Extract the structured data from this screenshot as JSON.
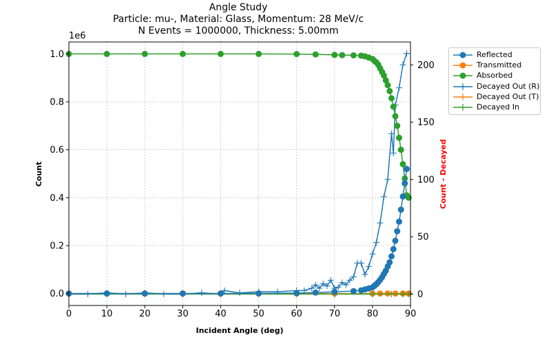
{
  "title": {
    "line1": "Angle Study",
    "line2": "Particle: mu-, Material: Glass, Momentum: 28 MeV/c",
    "line3": "N Events = 1000000, Thickness: 5.00mm"
  },
  "colors": {
    "reflected": "#1f77b4",
    "transmitted": "#ff7f0e",
    "absorbed": "#2ca02c",
    "right_axis_label": "#ff0000"
  },
  "chart_data": {
    "type": "line",
    "title": "Angle Study",
    "subtitle": "Particle: mu-, Material: Glass, Momentum: 28 MeV/c; N Events = 1000000, Thickness: 5.00mm",
    "xlabel": "Incident Angle (deg)",
    "ylabel": "Count",
    "ylabel_right": "Count - Decayed",
    "y_offset_label": "1e6",
    "xlim": [
      0,
      90
    ],
    "ylim": [
      -0.05,
      1.05
    ],
    "ylim_right": [
      -10,
      220
    ],
    "x_ticks": [
      "0",
      "10",
      "20",
      "30",
      "40",
      "50",
      "60",
      "70",
      "80",
      "90"
    ],
    "y_ticks": [
      "0.0",
      "0.2",
      "0.4",
      "0.6",
      "0.8",
      "1.0"
    ],
    "y_right_ticks": [
      "0",
      "50",
      "100",
      "150",
      "200"
    ],
    "grid": true,
    "legend_position": "outside-right",
    "series": [
      {
        "name": "Reflected",
        "axis": "left",
        "marker": "circle",
        "color": "#1f77b4",
        "x": [
          0,
          10,
          20,
          30,
          40,
          50,
          60,
          65,
          70,
          75,
          77,
          78,
          79,
          80,
          80.5,
          81,
          81.5,
          82,
          82.5,
          83,
          83.5,
          84,
          84.5,
          85,
          85.5,
          86,
          86.5,
          87,
          87.5,
          88,
          88.5,
          89
        ],
        "values": [
          0,
          0,
          0,
          0,
          0,
          0.0005,
          0.002,
          0.004,
          0.007,
          0.01,
          0.013,
          0.017,
          0.021,
          0.026,
          0.032,
          0.039,
          0.047,
          0.057,
          0.068,
          0.082,
          0.095,
          0.113,
          0.13,
          0.155,
          0.185,
          0.22,
          0.26,
          0.3,
          0.35,
          0.405,
          0.46,
          0.52
        ]
      },
      {
        "name": "Transmitted",
        "axis": "left",
        "marker": "circle",
        "color": "#ff7f0e",
        "x": [
          0,
          10,
          20,
          30,
          40,
          50,
          60,
          70,
          80,
          82,
          84,
          86,
          88,
          89.5
        ],
        "values": [
          0,
          0,
          0,
          0,
          0,
          0,
          0,
          0,
          0,
          0,
          0,
          0,
          0,
          0
        ]
      },
      {
        "name": "Absorbed",
        "axis": "left",
        "marker": "circle",
        "color": "#2ca02c",
        "x": [
          0,
          10,
          20,
          30,
          40,
          50,
          60,
          65,
          70,
          72,
          75,
          77,
          78,
          79,
          80,
          80.5,
          81,
          81.5,
          82,
          82.5,
          83,
          83.5,
          84,
          84.5,
          85,
          85.5,
          86,
          86.5,
          87,
          87.5,
          88,
          88.5,
          89,
          89.5
        ],
        "values": [
          1.0,
          1.0,
          1.0,
          1.0,
          1.0,
          1.0,
          0.9995,
          0.998,
          0.996,
          0.995,
          0.994,
          0.993,
          0.99,
          0.985,
          0.979,
          0.971,
          0.965,
          0.955,
          0.94,
          0.925,
          0.91,
          0.89,
          0.87,
          0.845,
          0.815,
          0.78,
          0.74,
          0.7,
          0.65,
          0.6,
          0.54,
          0.48,
          0.41,
          0.4
        ]
      },
      {
        "name": "Decayed Out (R)",
        "axis": "right",
        "marker": "plus",
        "color": "#1f77b4",
        "x": [
          0,
          5,
          10,
          15,
          20,
          25,
          30,
          35,
          40,
          41,
          45,
          50,
          55,
          60,
          62,
          64,
          65,
          66,
          67,
          68,
          69,
          70,
          71,
          72,
          73,
          74,
          75,
          76,
          77,
          78,
          79,
          80,
          81,
          82,
          83,
          84,
          85,
          85.5,
          86,
          87,
          88,
          89
        ],
        "values": [
          0,
          0,
          1,
          0,
          1,
          0,
          0,
          1,
          0,
          3,
          1,
          2,
          2,
          3,
          3,
          5,
          8,
          5,
          9,
          7,
          12,
          5,
          6,
          10,
          8,
          12,
          15,
          27,
          27,
          17,
          24,
          35,
          45,
          62,
          85,
          100,
          140,
          123,
          165,
          180,
          200,
          210
        ]
      },
      {
        "name": "Decayed Out (T)",
        "axis": "right",
        "marker": "plus",
        "color": "#ff7f0e",
        "x": [
          0,
          10,
          20,
          30,
          40,
          50,
          60,
          70,
          80,
          85,
          88,
          89.5
        ],
        "values": [
          0,
          0,
          0,
          0,
          0,
          0,
          0,
          0,
          0,
          0,
          0,
          0
        ]
      },
      {
        "name": "Decayed In",
        "axis": "right",
        "marker": "plus",
        "color": "#2ca02c",
        "x": [
          0,
          10,
          20,
          30,
          40,
          50,
          60,
          70,
          80,
          85,
          88,
          89.5
        ],
        "values": [
          0,
          0,
          0,
          0,
          0,
          0,
          0,
          0,
          0,
          0,
          0,
          0
        ]
      }
    ]
  }
}
